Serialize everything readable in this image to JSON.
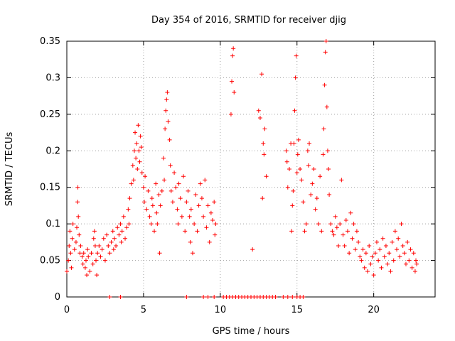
{
  "chart_data": {
    "type": "scatter",
    "title": "Day 354 of 2016, SRMTID for receiver djig",
    "xlabel": "GPS time / hours",
    "ylabel": "SRMTID / TECUs",
    "xlim": [
      0,
      24
    ],
    "ylim": [
      0,
      0.35
    ],
    "xticks": [
      0,
      5,
      10,
      15,
      20
    ],
    "yticks": [
      0,
      0.05,
      0.1,
      0.15,
      0.2,
      0.25,
      0.3,
      0.35
    ],
    "xtick_labels": [
      "0",
      "5",
      "10",
      "15",
      "20"
    ],
    "ytick_labels": [
      "0",
      "0.05",
      "0.1",
      "0.15",
      "0.2",
      "0.25",
      "0.3",
      "0.35"
    ],
    "grid": true,
    "marker": "+",
    "color": "#ff0000",
    "series": [
      {
        "name": "SRMTID",
        "points": [
          [
            0.0,
            0.035
          ],
          [
            0.1,
            0.05
          ],
          [
            0.15,
            0.07
          ],
          [
            0.2,
            0.09
          ],
          [
            0.25,
            0.06
          ],
          [
            0.3,
            0.04
          ],
          [
            0.35,
            0.08
          ],
          [
            0.4,
            0.1
          ],
          [
            0.5,
            0.065
          ],
          [
            0.6,
            0.075
          ],
          [
            0.65,
            0.095
          ],
          [
            0.7,
            0.13
          ],
          [
            0.72,
            0.15
          ],
          [
            0.75,
            0.11
          ],
          [
            0.8,
            0.085
          ],
          [
            0.85,
            0.06
          ],
          [
            0.9,
            0.07
          ],
          [
            1.0,
            0.055
          ],
          [
            1.05,
            0.045
          ],
          [
            1.1,
            0.06
          ],
          [
            1.2,
            0.04
          ],
          [
            1.25,
            0.05
          ],
          [
            1.3,
            0.03
          ],
          [
            1.35,
            0.065
          ],
          [
            1.4,
            0.055
          ],
          [
            1.5,
            0.035
          ],
          [
            1.6,
            0.06
          ],
          [
            1.7,
            0.045
          ],
          [
            1.75,
            0.08
          ],
          [
            1.8,
            0.09
          ],
          [
            1.85,
            0.07
          ],
          [
            1.9,
            0.05
          ],
          [
            1.95,
            0.03
          ],
          [
            2.0,
            0.06
          ],
          [
            2.1,
            0.07
          ],
          [
            2.2,
            0.055
          ],
          [
            2.3,
            0.065
          ],
          [
            2.4,
            0.08
          ],
          [
            2.5,
            0.05
          ],
          [
            2.6,
            0.085
          ],
          [
            2.7,
            0.07
          ],
          [
            2.8,
            0.06
          ],
          [
            2.9,
            0.075
          ],
          [
            3.0,
            0.09
          ],
          [
            3.05,
            0.065
          ],
          [
            3.1,
            0.08
          ],
          [
            3.2,
            0.07
          ],
          [
            3.3,
            0.095
          ],
          [
            3.4,
            0.085
          ],
          [
            3.5,
            0.1
          ],
          [
            3.55,
            0.075
          ],
          [
            3.6,
            0.09
          ],
          [
            3.7,
            0.11
          ],
          [
            3.8,
            0.08
          ],
          [
            3.9,
            0.095
          ],
          [
            4.0,
            0.12
          ],
          [
            4.05,
            0.1
          ],
          [
            4.1,
            0.135
          ],
          [
            4.2,
            0.155
          ],
          [
            4.3,
            0.18
          ],
          [
            4.35,
            0.16
          ],
          [
            4.4,
            0.2
          ],
          [
            4.45,
            0.225
          ],
          [
            4.5,
            0.19
          ],
          [
            4.55,
            0.21
          ],
          [
            4.6,
            0.175
          ],
          [
            4.65,
            0.235
          ],
          [
            4.7,
            0.2
          ],
          [
            4.75,
            0.185
          ],
          [
            4.8,
            0.22
          ],
          [
            4.85,
            0.205
          ],
          [
            4.9,
            0.17
          ],
          [
            5.0,
            0.15
          ],
          [
            5.05,
            0.13
          ],
          [
            5.1,
            0.165
          ],
          [
            5.2,
            0.12
          ],
          [
            5.3,
            0.145
          ],
          [
            5.4,
            0.11
          ],
          [
            5.5,
            0.1
          ],
          [
            5.55,
            0.135
          ],
          [
            5.6,
            0.125
          ],
          [
            5.7,
            0.09
          ],
          [
            5.8,
            0.155
          ],
          [
            5.85,
            0.115
          ],
          [
            5.9,
            0.1
          ],
          [
            6.0,
            0.14
          ],
          [
            6.05,
            0.06
          ],
          [
            6.1,
            0.125
          ],
          [
            6.2,
            0.145
          ],
          [
            6.3,
            0.19
          ],
          [
            6.35,
            0.16
          ],
          [
            6.4,
            0.23
          ],
          [
            6.45,
            0.255
          ],
          [
            6.5,
            0.27
          ],
          [
            6.55,
            0.28
          ],
          [
            6.6,
            0.24
          ],
          [
            6.7,
            0.215
          ],
          [
            6.75,
            0.18
          ],
          [
            6.8,
            0.145
          ],
          [
            6.9,
            0.13
          ],
          [
            7.0,
            0.17
          ],
          [
            7.1,
            0.15
          ],
          [
            7.2,
            0.12
          ],
          [
            7.25,
            0.1
          ],
          [
            7.3,
            0.155
          ],
          [
            7.4,
            0.135
          ],
          [
            7.5,
            0.11
          ],
          [
            7.6,
            0.165
          ],
          [
            7.7,
            0.09
          ],
          [
            7.8,
            0.13
          ],
          [
            7.9,
            0.145
          ],
          [
            8.0,
            0.11
          ],
          [
            8.05,
            0.075
          ],
          [
            8.1,
            0.12
          ],
          [
            8.2,
            0.06
          ],
          [
            8.3,
            0.1
          ],
          [
            8.4,
            0.14
          ],
          [
            8.5,
            0.09
          ],
          [
            8.6,
            0.125
          ],
          [
            8.7,
            0.155
          ],
          [
            8.8,
            0.135
          ],
          [
            8.9,
            0.11
          ],
          [
            9.0,
            0.16
          ],
          [
            9.1,
            0.095
          ],
          [
            9.2,
            0.125
          ],
          [
            9.3,
            0.075
          ],
          [
            9.4,
            0.115
          ],
          [
            9.5,
            0.105
          ],
          [
            9.6,
            0.13
          ],
          [
            9.65,
            0.085
          ],
          [
            9.7,
            0.1
          ],
          [
            10.7,
            0.25
          ],
          [
            10.75,
            0.295
          ],
          [
            10.8,
            0.33
          ],
          [
            10.85,
            0.34
          ],
          [
            10.9,
            0.28
          ],
          [
            12.1,
            0.065
          ],
          [
            12.5,
            0.255
          ],
          [
            12.6,
            0.245
          ],
          [
            12.7,
            0.305
          ],
          [
            12.75,
            0.135
          ],
          [
            12.8,
            0.21
          ],
          [
            12.85,
            0.195
          ],
          [
            12.9,
            0.23
          ],
          [
            13.0,
            0.165
          ],
          [
            14.3,
            0.2
          ],
          [
            14.35,
            0.185
          ],
          [
            14.4,
            0.15
          ],
          [
            14.5,
            0.175
          ],
          [
            14.6,
            0.21
          ],
          [
            14.65,
            0.09
          ],
          [
            14.7,
            0.125
          ],
          [
            14.75,
            0.145
          ],
          [
            14.8,
            0.21
          ],
          [
            14.85,
            0.255
          ],
          [
            14.9,
            0.3
          ],
          [
            14.95,
            0.33
          ],
          [
            15.0,
            0.17
          ],
          [
            15.05,
            0.195
          ],
          [
            15.1,
            0.215
          ],
          [
            15.2,
            0.175
          ],
          [
            15.3,
            0.16
          ],
          [
            15.4,
            0.13
          ],
          [
            15.5,
            0.09
          ],
          [
            15.6,
            0.1
          ],
          [
            15.7,
            0.2
          ],
          [
            15.75,
            0.18
          ],
          [
            15.8,
            0.21
          ],
          [
            15.9,
            0.14
          ],
          [
            16.0,
            0.155
          ],
          [
            16.1,
            0.175
          ],
          [
            16.2,
            0.12
          ],
          [
            16.3,
            0.135
          ],
          [
            16.4,
            0.1
          ],
          [
            16.5,
            0.165
          ],
          [
            16.6,
            0.09
          ],
          [
            16.7,
            0.195
          ],
          [
            16.75,
            0.23
          ],
          [
            16.8,
            0.29
          ],
          [
            16.85,
            0.335
          ],
          [
            16.9,
            0.35
          ],
          [
            16.95,
            0.26
          ],
          [
            17.0,
            0.2
          ],
          [
            17.05,
            0.175
          ],
          [
            17.1,
            0.14
          ],
          [
            17.2,
            0.1
          ],
          [
            17.3,
            0.09
          ],
          [
            17.4,
            0.085
          ],
          [
            17.5,
            0.11
          ],
          [
            17.6,
            0.095
          ],
          [
            17.7,
            0.07
          ],
          [
            17.8,
            0.1
          ],
          [
            17.9,
            0.16
          ],
          [
            18.0,
            0.085
          ],
          [
            18.1,
            0.07
          ],
          [
            18.2,
            0.105
          ],
          [
            18.3,
            0.09
          ],
          [
            18.4,
            0.06
          ],
          [
            18.5,
            0.115
          ],
          [
            18.6,
            0.08
          ],
          [
            18.7,
            0.1
          ],
          [
            18.8,
            0.065
          ],
          [
            18.9,
            0.09
          ],
          [
            19.0,
            0.075
          ],
          [
            19.1,
            0.055
          ],
          [
            19.2,
            0.05
          ],
          [
            19.3,
            0.065
          ],
          [
            19.4,
            0.04
          ],
          [
            19.5,
            0.06
          ],
          [
            19.6,
            0.035
          ],
          [
            19.7,
            0.07
          ],
          [
            19.8,
            0.045
          ],
          [
            19.9,
            0.055
          ],
          [
            20.0,
            0.03
          ],
          [
            20.1,
            0.06
          ],
          [
            20.2,
            0.075
          ],
          [
            20.3,
            0.05
          ],
          [
            20.4,
            0.065
          ],
          [
            20.5,
            0.04
          ],
          [
            20.6,
            0.08
          ],
          [
            20.7,
            0.055
          ],
          [
            20.8,
            0.07
          ],
          [
            20.9,
            0.045
          ],
          [
            21.0,
            0.06
          ],
          [
            21.1,
            0.035
          ],
          [
            21.2,
            0.075
          ],
          [
            21.3,
            0.05
          ],
          [
            21.4,
            0.09
          ],
          [
            21.5,
            0.065
          ],
          [
            21.6,
            0.08
          ],
          [
            21.7,
            0.055
          ],
          [
            21.8,
            0.1
          ],
          [
            21.9,
            0.07
          ],
          [
            22.0,
            0.06
          ],
          [
            22.1,
            0.045
          ],
          [
            22.2,
            0.075
          ],
          [
            22.3,
            0.05
          ],
          [
            22.4,
            0.065
          ],
          [
            22.5,
            0.04
          ],
          [
            22.6,
            0.06
          ],
          [
            22.7,
            0.035
          ],
          [
            22.75,
            0.05
          ],
          [
            22.8,
            0.045
          ],
          [
            2.8,
            0.0
          ],
          [
            3.5,
            0.0
          ],
          [
            7.8,
            0.0
          ],
          [
            8.9,
            0.0
          ],
          [
            9.2,
            0.0
          ],
          [
            9.6,
            0.0
          ],
          [
            10.2,
            0.0
          ],
          [
            10.4,
            0.0
          ],
          [
            10.6,
            0.0
          ],
          [
            10.8,
            0.0
          ],
          [
            11.0,
            0.0
          ],
          [
            11.2,
            0.0
          ],
          [
            11.4,
            0.0
          ],
          [
            11.6,
            0.0
          ],
          [
            11.8,
            0.0
          ],
          [
            12.0,
            0.0
          ],
          [
            12.2,
            0.0
          ],
          [
            12.4,
            0.0
          ],
          [
            12.6,
            0.0
          ],
          [
            12.8,
            0.0
          ],
          [
            13.0,
            0.0
          ],
          [
            13.2,
            0.0
          ],
          [
            13.4,
            0.0
          ],
          [
            13.6,
            0.0
          ],
          [
            14.1,
            0.0
          ],
          [
            14.4,
            0.0
          ],
          [
            14.7,
            0.0
          ],
          [
            15.0,
            0.0
          ],
          [
            15.2,
            0.0
          ],
          [
            15.4,
            0.0
          ]
        ]
      }
    ]
  }
}
